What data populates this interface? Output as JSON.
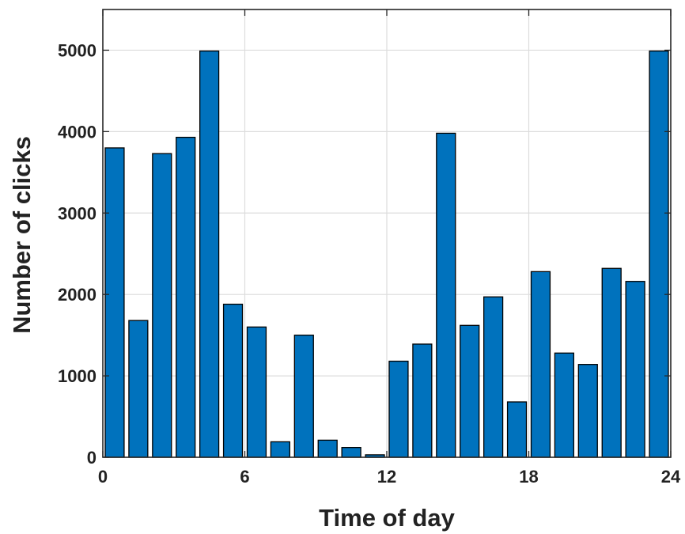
{
  "chart_data": {
    "type": "bar",
    "title": "",
    "xlabel": "Time of day",
    "ylabel": "Number of clicks",
    "x": [
      0.5,
      1.5,
      2.5,
      3.5,
      4.5,
      5.5,
      6.5,
      7.5,
      8.5,
      9.5,
      10.5,
      11.5,
      12.5,
      13.5,
      14.5,
      15.5,
      16.5,
      17.5,
      18.5,
      19.5,
      20.5,
      21.5,
      22.5,
      23.5
    ],
    "values": [
      3800,
      1680,
      3730,
      3930,
      4990,
      1880,
      1600,
      190,
      1500,
      210,
      120,
      30,
      1180,
      1390,
      3980,
      1620,
      1970,
      680,
      2280,
      1280,
      1140,
      2320,
      2160,
      4990
    ],
    "xlim": [
      0,
      24
    ],
    "ylim": [
      0,
      5500
    ],
    "xticks": [
      0,
      6,
      12,
      18,
      24
    ],
    "xtick_labels": [
      "0",
      "6",
      "12",
      "18",
      "24"
    ],
    "yticks": [
      0,
      1000,
      2000,
      3000,
      4000,
      5000
    ],
    "ytick_labels": [
      "0",
      "1000",
      "2000",
      "3000",
      "4000",
      "5000"
    ],
    "grid": true,
    "bar_color": "#0072bd",
    "bar_edge_color": "#000000"
  }
}
